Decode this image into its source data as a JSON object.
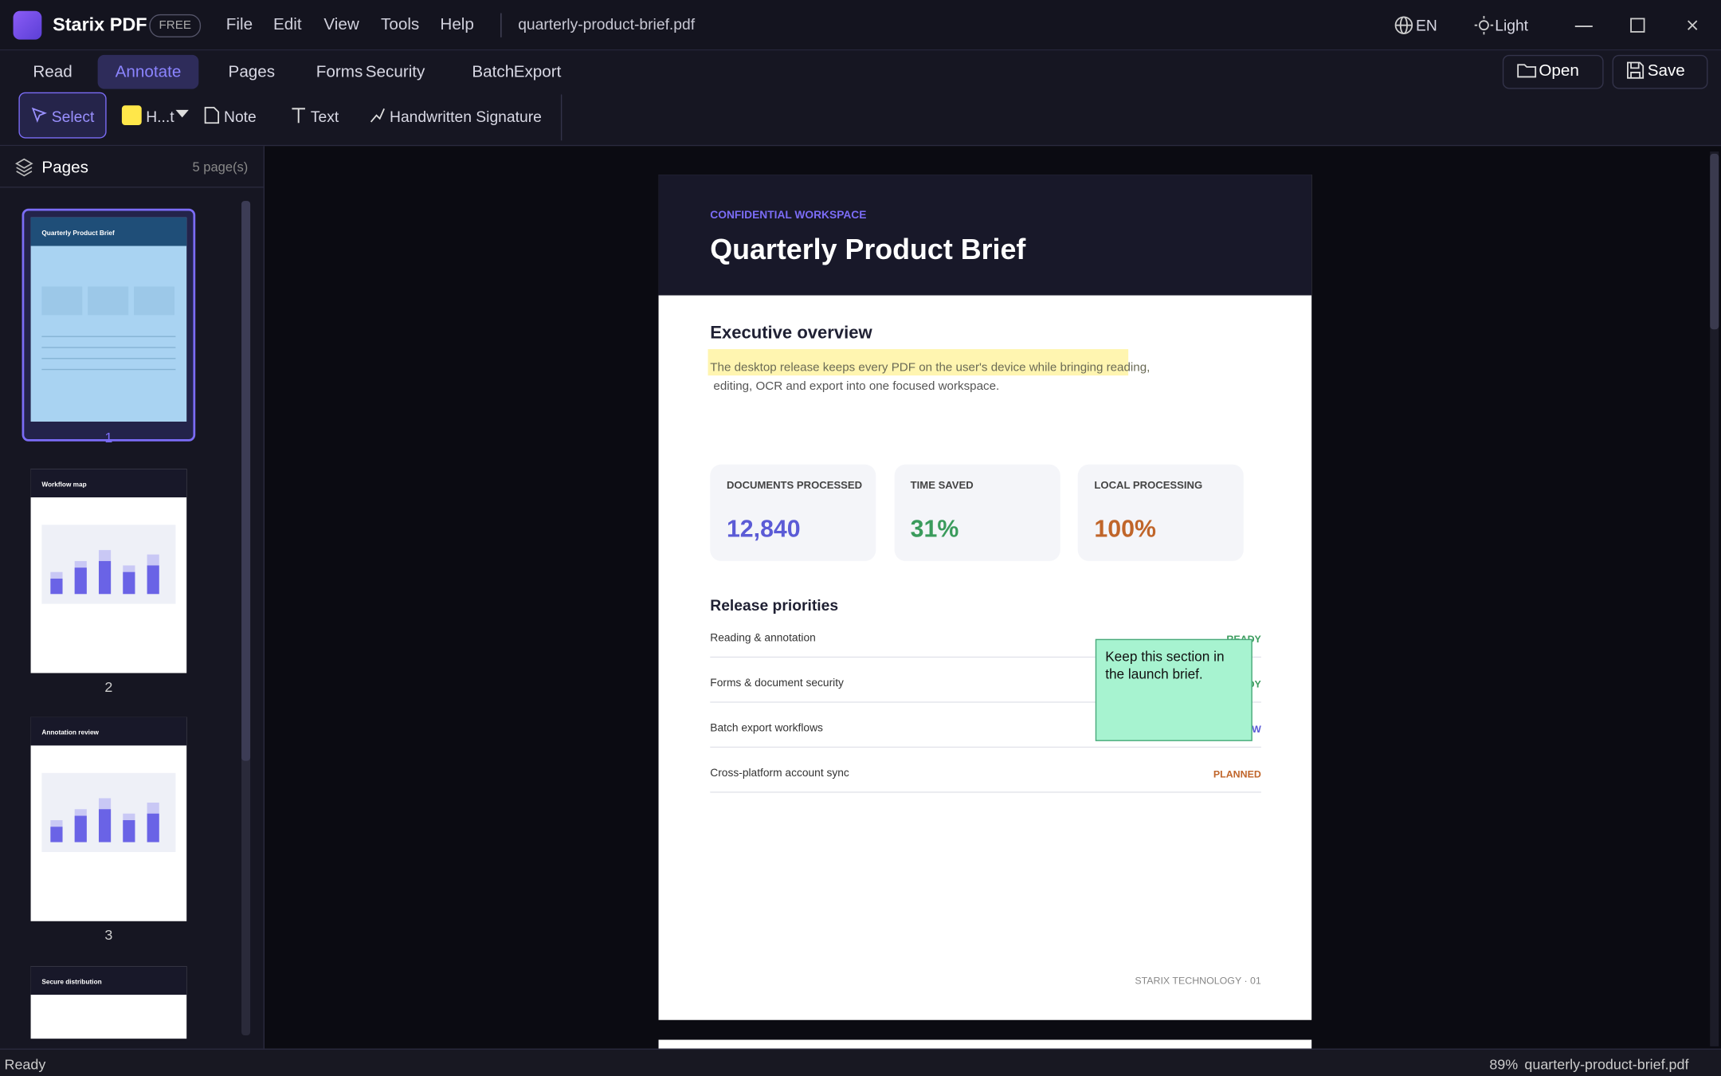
{
  "app": {
    "name": "Starix PDF",
    "badge": "FREE",
    "menu": [
      "File",
      "Edit",
      "View",
      "Tools",
      "Help"
    ],
    "file_name": "quarterly-product-brief.pdf",
    "language": "EN",
    "theme": "Light"
  },
  "tabs": [
    "Read",
    "Annotate",
    "Pages",
    "Forms",
    "Security",
    "Batch",
    "Export"
  ],
  "actions": [
    "Open",
    "Save"
  ],
  "toolbar": [
    "Select",
    "H...t",
    "Note",
    "Text",
    "Handwritten Signature"
  ],
  "sidebar": {
    "title": "Pages",
    "count": "5 page(s)",
    "thumbnails": [
      {
        "title": "Quarterly Product Brief",
        "number": "1"
      },
      {
        "title": "Workflow map",
        "number": "2"
      },
      {
        "title": "Annotation review",
        "number": "3"
      },
      {
        "title": "Secure distribution"
      }
    ]
  },
  "document": {
    "eyebrow": "CONFIDENTIAL WORKSPACE",
    "title": "Quarterly Product Brief",
    "overview_heading": "Executive overview",
    "paragraph": [
      "The desktop release keeps every PDF on the user's device while bringing reading,",
      "editing, OCR and export into one focused workspace."
    ],
    "stats": [
      {
        "label": "DOCUMENTS PROCESSED",
        "value": "12,840"
      },
      {
        "label": "TIME SAVED",
        "value": "31%"
      },
      {
        "label": "LOCAL PROCESSING",
        "value": "100%"
      }
    ],
    "priorities_heading": "Release priorities",
    "priorities": [
      {
        "name": "Reading & annotation",
        "status": "READY"
      },
      {
        "name": "Forms & document security",
        "status": "READY"
      },
      {
        "name": "Batch export workflows",
        "status": "REVIEW"
      },
      {
        "name": "Cross-platform account sync",
        "status": "PLANNED"
      }
    ],
    "note": "Keep this section in the launch brief.",
    "footer": "STARIX TECHNOLOGY · 01"
  },
  "status_bar": {
    "left": "Ready",
    "zoom": "89%",
    "file": "quarterly-product-brief.pdf"
  }
}
